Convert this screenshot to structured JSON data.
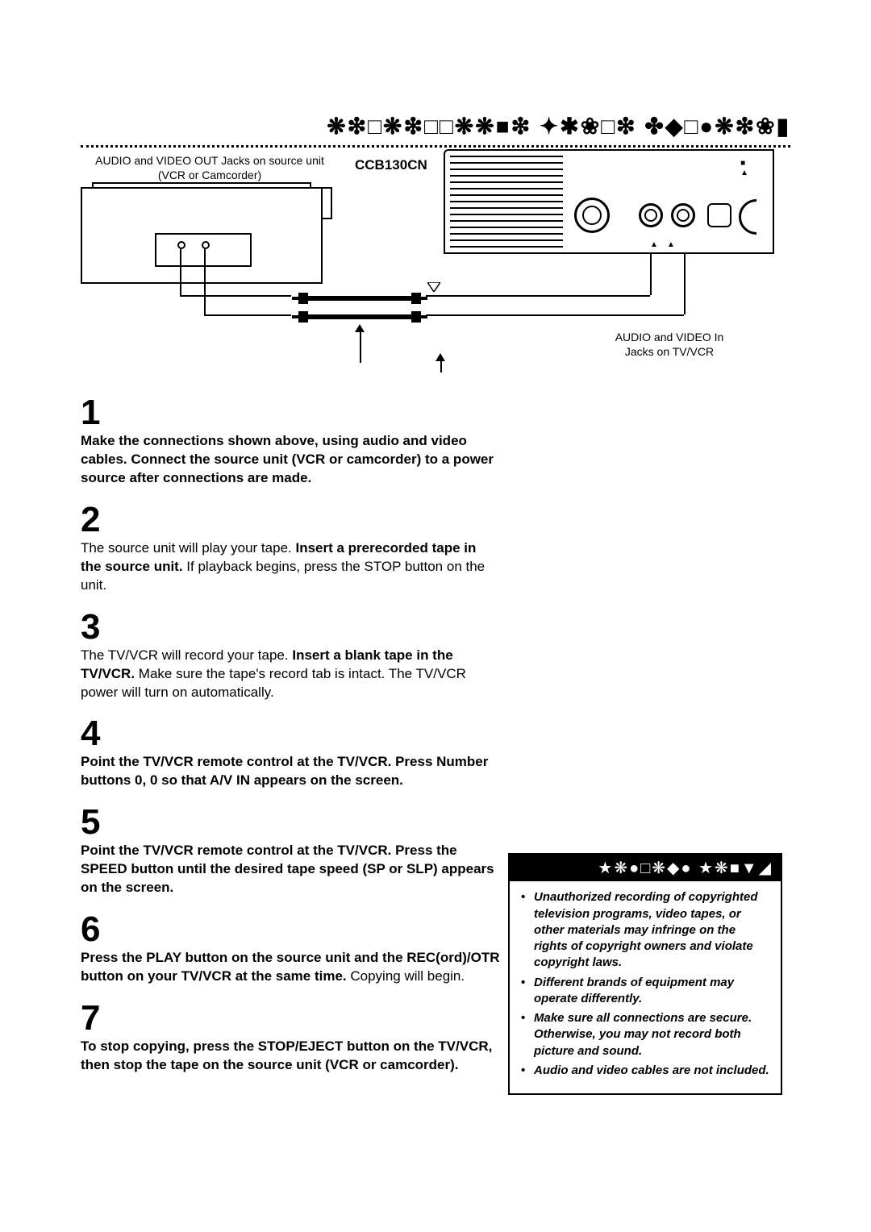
{
  "header_symbols": "❋❇□❋❇□□❋❋■❇ ✦✱❀□❇ ✤◆□●❋❇❀▮",
  "diagram": {
    "source_label_line1": "AUDIO and VIDEO OUT Jacks on source unit",
    "source_label_line2": "(VCR or Camcorder)",
    "model": "CCB130CN",
    "avin_label_line1": "AUDIO and VIDEO In",
    "avin_label_line2": "Jacks on TV/VCR",
    "tv_marks": "■\n▲"
  },
  "steps": [
    {
      "num": "1",
      "segments": [
        {
          "text": "Make the connections shown above, using audio and video cables. Connect the source unit (VCR or camcorder) to a power source after connections are made.",
          "bold": true
        }
      ]
    },
    {
      "num": "2",
      "segments": [
        {
          "text": "The source unit will play your tape. ",
          "bold": false
        },
        {
          "text": "Insert a prerecorded tape in the source unit.",
          "bold": true
        },
        {
          "text": " If playback begins, press the STOP button on the unit.",
          "bold": false
        }
      ]
    },
    {
      "num": "3",
      "segments": [
        {
          "text": "The TV/VCR will record your tape. ",
          "bold": false
        },
        {
          "text": "Insert a blank tape in the TV/VCR.",
          "bold": true
        },
        {
          "text": " Make sure the tape's record tab is intact. The TV/VCR power will turn on automatically.",
          "bold": false
        }
      ]
    },
    {
      "num": "4",
      "segments": [
        {
          "text": "Point the TV/VCR remote control at the TV/VCR. Press Number buttons 0, 0 so that A/V IN appears on the screen.",
          "bold": true
        }
      ]
    },
    {
      "num": "5",
      "segments": [
        {
          "text": "Point the TV/VCR remote control at the TV/VCR. Press the SPEED button until the desired tape speed (SP or SLP) appears on the screen.",
          "bold": true
        }
      ]
    },
    {
      "num": "6",
      "segments": [
        {
          "text": "Press the PLAY button on the source unit and the REC(ord)/OTR button on your TV/VCR at the same time.",
          "bold": true
        },
        {
          "text": " Copying will begin.",
          "bold": false
        }
      ]
    },
    {
      "num": "7",
      "segments": [
        {
          "text": "To stop copying, press the STOP/EJECT button on the TV/VCR, then stop the tape on the source unit (VCR or camcorder).",
          "bold": true
        }
      ]
    }
  ],
  "hints": {
    "header_symbols": "★❋●□❋◆● ★❋■▼◢",
    "items": [
      "Unauthorized recording of copy­righted television programs, video tapes, or other materials may infringe on the rights of copyright owners and violate copyright laws.",
      "Different brands of equipment may operate differently.",
      "Make sure all connections are secure. Otherwise, you may not record both picture and sound.",
      "Audio and video cables are not included."
    ]
  }
}
